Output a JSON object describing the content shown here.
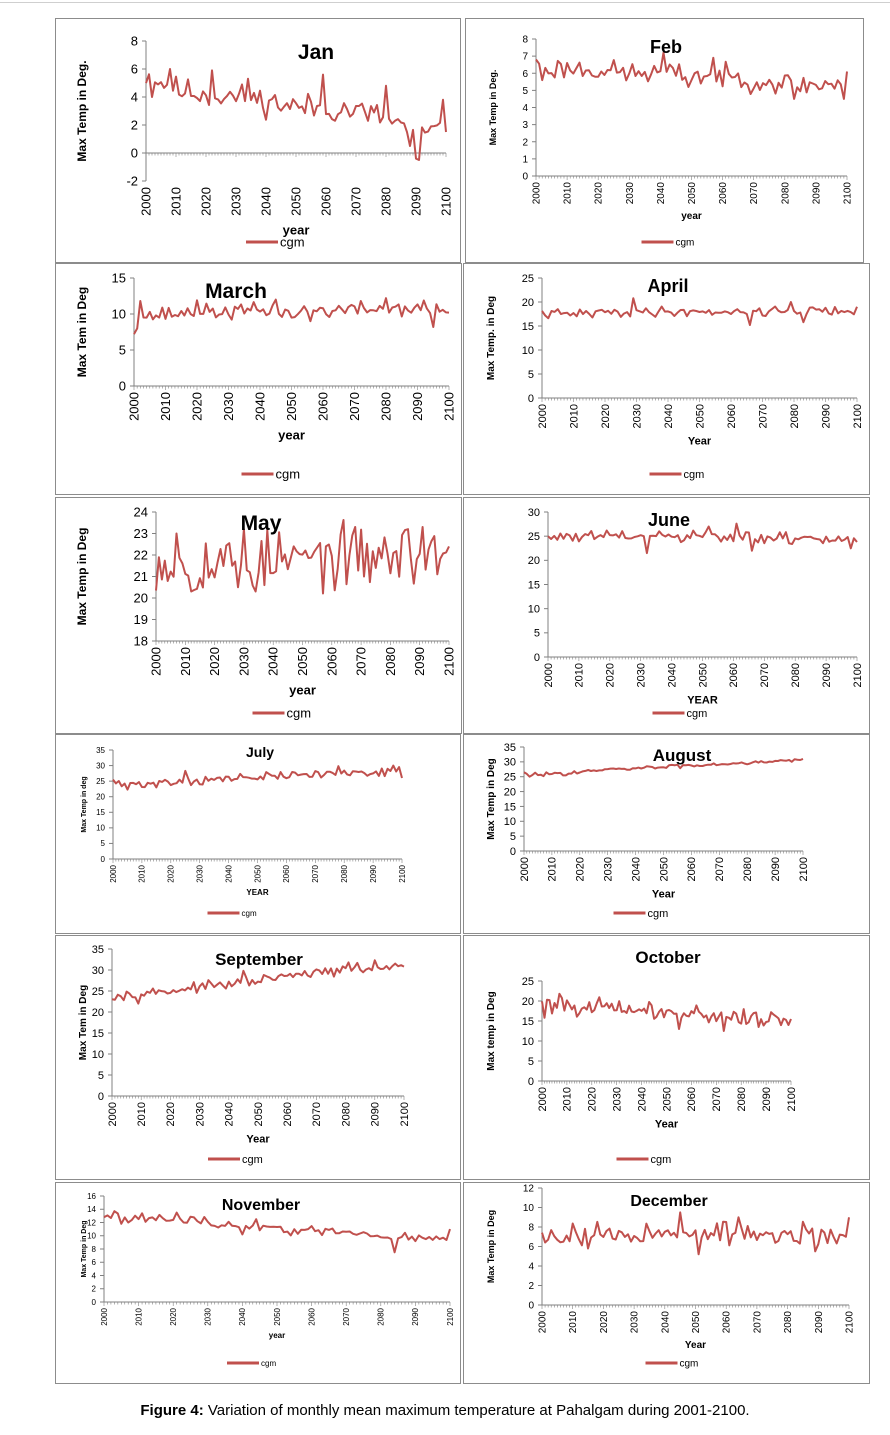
{
  "caption": {
    "label": "Figure 4:",
    "text": "Variation of monthly mean maximum temperature at Pahalgam during 2001-2100."
  },
  "series_color": "#c0504d",
  "chart_data": [
    {
      "type": "line",
      "title": "Jan",
      "xlabel": "year",
      "ylabel": "Max Temp in Deg.",
      "legend": "cgm",
      "ylim": [
        -2,
        8
      ],
      "yticks": [
        -2,
        0,
        2,
        4,
        6,
        8
      ],
      "xticks": [
        2000,
        2010,
        2020,
        2030,
        2040,
        2050,
        2060,
        2070,
        2080,
        2090,
        2100
      ],
      "x_range": [
        2000,
        2100
      ],
      "base": [
        5.6,
        4.5,
        4.2,
        4.0,
        3.7,
        3.3,
        3.2,
        3.0,
        2.5,
        1.5,
        1.6
      ],
      "amp": 0.9,
      "seed": 11,
      "spikes": [
        [
          2002,
          4.0
        ],
        [
          2008,
          6.0
        ],
        [
          2022,
          5.9
        ],
        [
          2034,
          5.3
        ],
        [
          2059,
          5.6
        ],
        [
          2080,
          4.8
        ],
        [
          2088,
          0.5
        ],
        [
          2090,
          -0.4
        ],
        [
          2091,
          -0.5
        ],
        [
          2099,
          3.8
        ],
        [
          2100,
          1.5
        ]
      ]
    },
    {
      "type": "line",
      "title": "Feb",
      "xlabel": "year",
      "ylabel": "Max Temp in Deg.",
      "legend": "cgm",
      "ylim": [
        0,
        8
      ],
      "yticks": [
        0,
        1,
        2,
        3,
        4,
        5,
        6,
        7,
        8
      ],
      "xticks": [
        2000,
        2010,
        2020,
        2030,
        2040,
        2050,
        2060,
        2070,
        2080,
        2090,
        2100
      ],
      "x_range": [
        2000,
        2100
      ],
      "base": [
        6.2,
        6.3,
        6.2,
        6.0,
        6.0,
        5.9,
        5.8,
        5.6,
        5.4,
        5.3,
        5.5
      ],
      "amp": 0.6,
      "seed": 23,
      "spikes": [
        [
          2000,
          6.8
        ],
        [
          2002,
          5.6
        ],
        [
          2041,
          7.2
        ],
        [
          2049,
          5.2
        ],
        [
          2057,
          6.9
        ],
        [
          2083,
          4.5
        ],
        [
          2099,
          4.5
        ],
        [
          2100,
          6.1
        ]
      ]
    },
    {
      "type": "line",
      "title": "March",
      "xlabel": "year",
      "ylabel": "Max Tem in Deg",
      "legend": "cgm",
      "ylim": [
        0,
        15
      ],
      "yticks": [
        0,
        5,
        10,
        15
      ],
      "xticks": [
        2000,
        2010,
        2020,
        2030,
        2040,
        2050,
        2060,
        2070,
        2080,
        2090,
        2100
      ],
      "x_range": [
        2000,
        2100
      ],
      "base": [
        9.5,
        10.0,
        10.2,
        10.3,
        10.5,
        10.3,
        10.5,
        10.6,
        10.8,
        10.8,
        10.6
      ],
      "amp": 1.0,
      "seed": 37,
      "spikes": [
        [
          2000,
          7.2
        ],
        [
          2001,
          8.0
        ],
        [
          2002,
          11.8
        ],
        [
          2020,
          11.9
        ],
        [
          2045,
          12.0
        ],
        [
          2050,
          9.5
        ],
        [
          2056,
          9.0
        ],
        [
          2080,
          12.2
        ],
        [
          2095,
          8.2
        ],
        [
          2100,
          10.2
        ]
      ]
    },
    {
      "type": "line",
      "title": "April",
      "xlabel": "Year",
      "ylabel": "Max Temp. in Deg",
      "legend": "cgm",
      "ylim": [
        0,
        25
      ],
      "yticks": [
        0,
        5,
        10,
        15,
        20,
        25
      ],
      "xticks": [
        2000,
        2010,
        2020,
        2030,
        2040,
        2050,
        2060,
        2070,
        2080,
        2090,
        2100
      ],
      "x_range": [
        2000,
        2100
      ],
      "base": [
        17.5,
        17.5,
        17.8,
        17.9,
        18.0,
        18.0,
        18.0,
        18.1,
        18.2,
        18.2,
        18.2
      ],
      "amp": 0.9,
      "seed": 41,
      "spikes": [
        [
          2029,
          20.8
        ],
        [
          2066,
          15.2
        ],
        [
          2079,
          20.0
        ],
        [
          2083,
          15.8
        ],
        [
          2100,
          19.0
        ]
      ]
    },
    {
      "type": "line",
      "title": "May",
      "xlabel": "year",
      "ylabel": "Max Temp in Deg",
      "legend": "cgm",
      "ylim": [
        18,
        24
      ],
      "yticks": [
        18,
        19,
        20,
        21,
        22,
        23,
        24
      ],
      "xticks": [
        2000,
        2010,
        2020,
        2030,
        2040,
        2050,
        2060,
        2070,
        2080,
        2090,
        2100
      ],
      "x_range": [
        2000,
        2100
      ],
      "base": [
        21.8,
        21.6,
        21.6,
        21.7,
        21.7,
        21.8,
        21.9,
        21.9,
        22.0,
        22.0,
        22.2
      ],
      "amp": 1.3,
      "seed": 53,
      "spikes": [
        [
          2007,
          23.0
        ],
        [
          2012,
          20.3
        ],
        [
          2028,
          20.5
        ],
        [
          2030,
          23.2
        ],
        [
          2034,
          20.3
        ],
        [
          2068,
          23.3
        ],
        [
          2086,
          23.2
        ],
        [
          2091,
          23.3
        ],
        [
          2096,
          21.1
        ],
        [
          2100,
          22.4
        ]
      ]
    },
    {
      "type": "line",
      "title": "June",
      "xlabel": "YEAR",
      "ylabel": "",
      "legend": "cgm",
      "ylim": [
        0,
        30
      ],
      "yticks": [
        0,
        5,
        10,
        15,
        20,
        25,
        30
      ],
      "xticks": [
        2000,
        2010,
        2020,
        2030,
        2040,
        2050,
        2060,
        2070,
        2080,
        2090,
        2100
      ],
      "x_range": [
        2000,
        2100
      ],
      "base": [
        24.8,
        24.8,
        25.0,
        24.9,
        24.9,
        24.8,
        24.7,
        24.6,
        24.5,
        24.5,
        24.4
      ],
      "amp": 1.2,
      "seed": 61,
      "spikes": [
        [
          2032,
          21.5
        ],
        [
          2052,
          27.0
        ],
        [
          2061,
          27.6
        ],
        [
          2066,
          22.0
        ],
        [
          2098,
          22.5
        ],
        [
          2100,
          23.8
        ]
      ]
    },
    {
      "type": "line",
      "title": "July",
      "xlabel": "YEAR",
      "ylabel": "Max Temp in deg",
      "legend": "cgm",
      "ylim": [
        0,
        35
      ],
      "yticks": [
        0,
        5,
        10,
        15,
        20,
        25,
        30,
        35
      ],
      "xticks": [
        2000,
        2010,
        2020,
        2030,
        2040,
        2050,
        2060,
        2070,
        2080,
        2090,
        2100
      ],
      "x_range": [
        2000,
        2100
      ],
      "base": [
        24.0,
        24.0,
        24.8,
        25.2,
        25.8,
        26.2,
        26.8,
        27.2,
        27.6,
        28.0,
        28.5
      ],
      "amp": 1.3,
      "seed": 71,
      "spikes": [
        [
          2000,
          25.5
        ],
        [
          2005,
          22.3
        ],
        [
          2025,
          28.3
        ],
        [
          2078,
          29.8
        ],
        [
          2097,
          30.0
        ],
        [
          2099,
          29.5
        ],
        [
          2100,
          26.0
        ]
      ]
    },
    {
      "type": "line",
      "title": "August",
      "xlabel": "Year",
      "ylabel": "Max Temp in Deg",
      "legend": "cgm",
      "ylim": [
        0,
        35
      ],
      "yticks": [
        0,
        5,
        10,
        15,
        20,
        25,
        30,
        35
      ],
      "xticks": [
        2000,
        2010,
        2020,
        2030,
        2040,
        2050,
        2060,
        2070,
        2080,
        2090,
        2100
      ],
      "x_range": [
        2000,
        2100
      ],
      "base": [
        25.5,
        26.0,
        26.6,
        27.3,
        27.8,
        28.3,
        28.8,
        29.3,
        29.8,
        30.3,
        30.8
      ],
      "amp": 0.6,
      "seed": 83,
      "spikes": [
        [
          2000,
          26.5
        ],
        [
          2002,
          25.0
        ],
        [
          2100,
          31.0
        ]
      ]
    },
    {
      "type": "line",
      "title": "September",
      "xlabel": "Year",
      "ylabel": "Max Tem in Deg",
      "legend": "cgm",
      "ylim": [
        0,
        35
      ],
      "yticks": [
        0,
        5,
        10,
        15,
        20,
        25,
        30,
        35
      ],
      "xticks": [
        2000,
        2010,
        2020,
        2030,
        2040,
        2050,
        2060,
        2070,
        2080,
        2090,
        2100
      ],
      "x_range": [
        2000,
        2100
      ],
      "base": [
        24.0,
        24.5,
        25.0,
        26.0,
        26.5,
        27.5,
        28.5,
        29.3,
        30.0,
        30.5,
        30.8
      ],
      "amp": 1.0,
      "seed": 97,
      "spikes": [
        [
          2004,
          22.8
        ],
        [
          2009,
          22.0
        ],
        [
          2045,
          29.8
        ],
        [
          2081,
          31.8
        ],
        [
          2090,
          32.3
        ],
        [
          2100,
          30.8
        ]
      ]
    },
    {
      "type": "line",
      "title": "October",
      "xlabel": "Year",
      "ylabel": "Max temp in Deg",
      "legend": "cgm",
      "ylim": [
        0,
        25
      ],
      "yticks": [
        0,
        5,
        10,
        15,
        20,
        25
      ],
      "xticks": [
        2000,
        2010,
        2020,
        2030,
        2040,
        2050,
        2060,
        2070,
        2080,
        2090,
        2100
      ],
      "x_range": [
        2000,
        2100
      ],
      "base": [
        19.5,
        19.0,
        18.5,
        18.0,
        17.8,
        17.2,
        16.8,
        16.2,
        16.0,
        15.5,
        15.5
      ],
      "amp": 2.0,
      "seed": 101,
      "spikes": [
        [
          2001,
          15.8
        ],
        [
          2007,
          21.8
        ],
        [
          2055,
          13.0
        ],
        [
          2073,
          12.5
        ],
        [
          2087,
          13.5
        ],
        [
          2099,
          14.0
        ],
        [
          2100,
          15.5
        ]
      ]
    },
    {
      "type": "line",
      "title": "November",
      "xlabel": "year",
      "ylabel": "Max Temp in Deg",
      "legend": "cgm",
      "ylim": [
        0,
        16
      ],
      "yticks": [
        0,
        2,
        4,
        6,
        8,
        10,
        12,
        14,
        16
      ],
      "xticks": [
        2000,
        2010,
        2020,
        2030,
        2040,
        2050,
        2060,
        2070,
        2080,
        2090,
        2100
      ],
      "x_range": [
        2000,
        2100
      ],
      "base": [
        13.0,
        12.5,
        12.5,
        12.0,
        11.5,
        11.0,
        10.8,
        10.4,
        10.0,
        9.6,
        9.6
      ],
      "amp": 0.7,
      "seed": 113,
      "spikes": [
        [
          2000,
          12.8
        ],
        [
          2003,
          13.7
        ],
        [
          2021,
          13.5
        ],
        [
          2040,
          10.2
        ],
        [
          2044,
          12.5
        ],
        [
          2084,
          7.5
        ],
        [
          2090,
          9.2
        ],
        [
          2100,
          11.0
        ]
      ]
    },
    {
      "type": "line",
      "title": "December",
      "xlabel": "Year",
      "ylabel": "Max Temp in Deg",
      "legend": "cgm",
      "ylim": [
        0,
        12
      ],
      "yticks": [
        0,
        2,
        4,
        6,
        8,
        10,
        12
      ],
      "xticks": [
        2000,
        2010,
        2020,
        2030,
        2040,
        2050,
        2060,
        2070,
        2080,
        2090,
        2100
      ],
      "x_range": [
        2000,
        2100
      ],
      "base": [
        7.0,
        7.3,
        7.3,
        7.3,
        7.4,
        7.2,
        7.3,
        7.3,
        7.2,
        6.8,
        6.9
      ],
      "amp": 1.1,
      "seed": 127,
      "spikes": [
        [
          2015,
          5.8
        ],
        [
          2045,
          9.5
        ],
        [
          2051,
          5.2
        ],
        [
          2064,
          9.0
        ],
        [
          2089,
          5.5
        ],
        [
          2099,
          7.0
        ],
        [
          2100,
          9.0
        ]
      ]
    }
  ]
}
